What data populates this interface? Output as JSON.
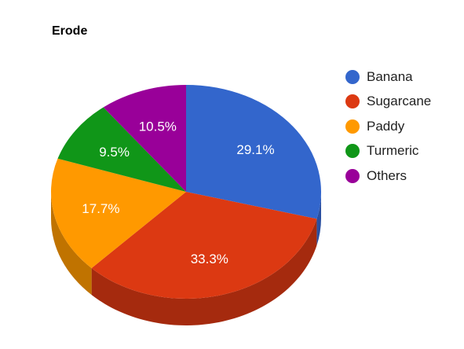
{
  "chart_data": {
    "type": "pie",
    "title": "Erode",
    "slices": [
      {
        "label": "Banana",
        "value": 29.1,
        "display": "29.1%",
        "color": "#3366cc",
        "side_color": "#2a4fa0"
      },
      {
        "label": "Sugarcane",
        "value": 33.3,
        "display": "33.3%",
        "color": "#dc3912",
        "side_color": "#a52a0e"
      },
      {
        "label": "Paddy",
        "value": 17.7,
        "display": "17.7%",
        "color": "#ff9900",
        "side_color": "#c07300"
      },
      {
        "label": "Turmeric",
        "value": 9.5,
        "display": "9.5%",
        "color": "#109618",
        "side_color": "#0c7012"
      },
      {
        "label": "Others",
        "value": 10.5,
        "display": "10.5%",
        "color": "#990099",
        "side_color": "#730073"
      }
    ],
    "three_d": true,
    "legend_position": "right"
  }
}
